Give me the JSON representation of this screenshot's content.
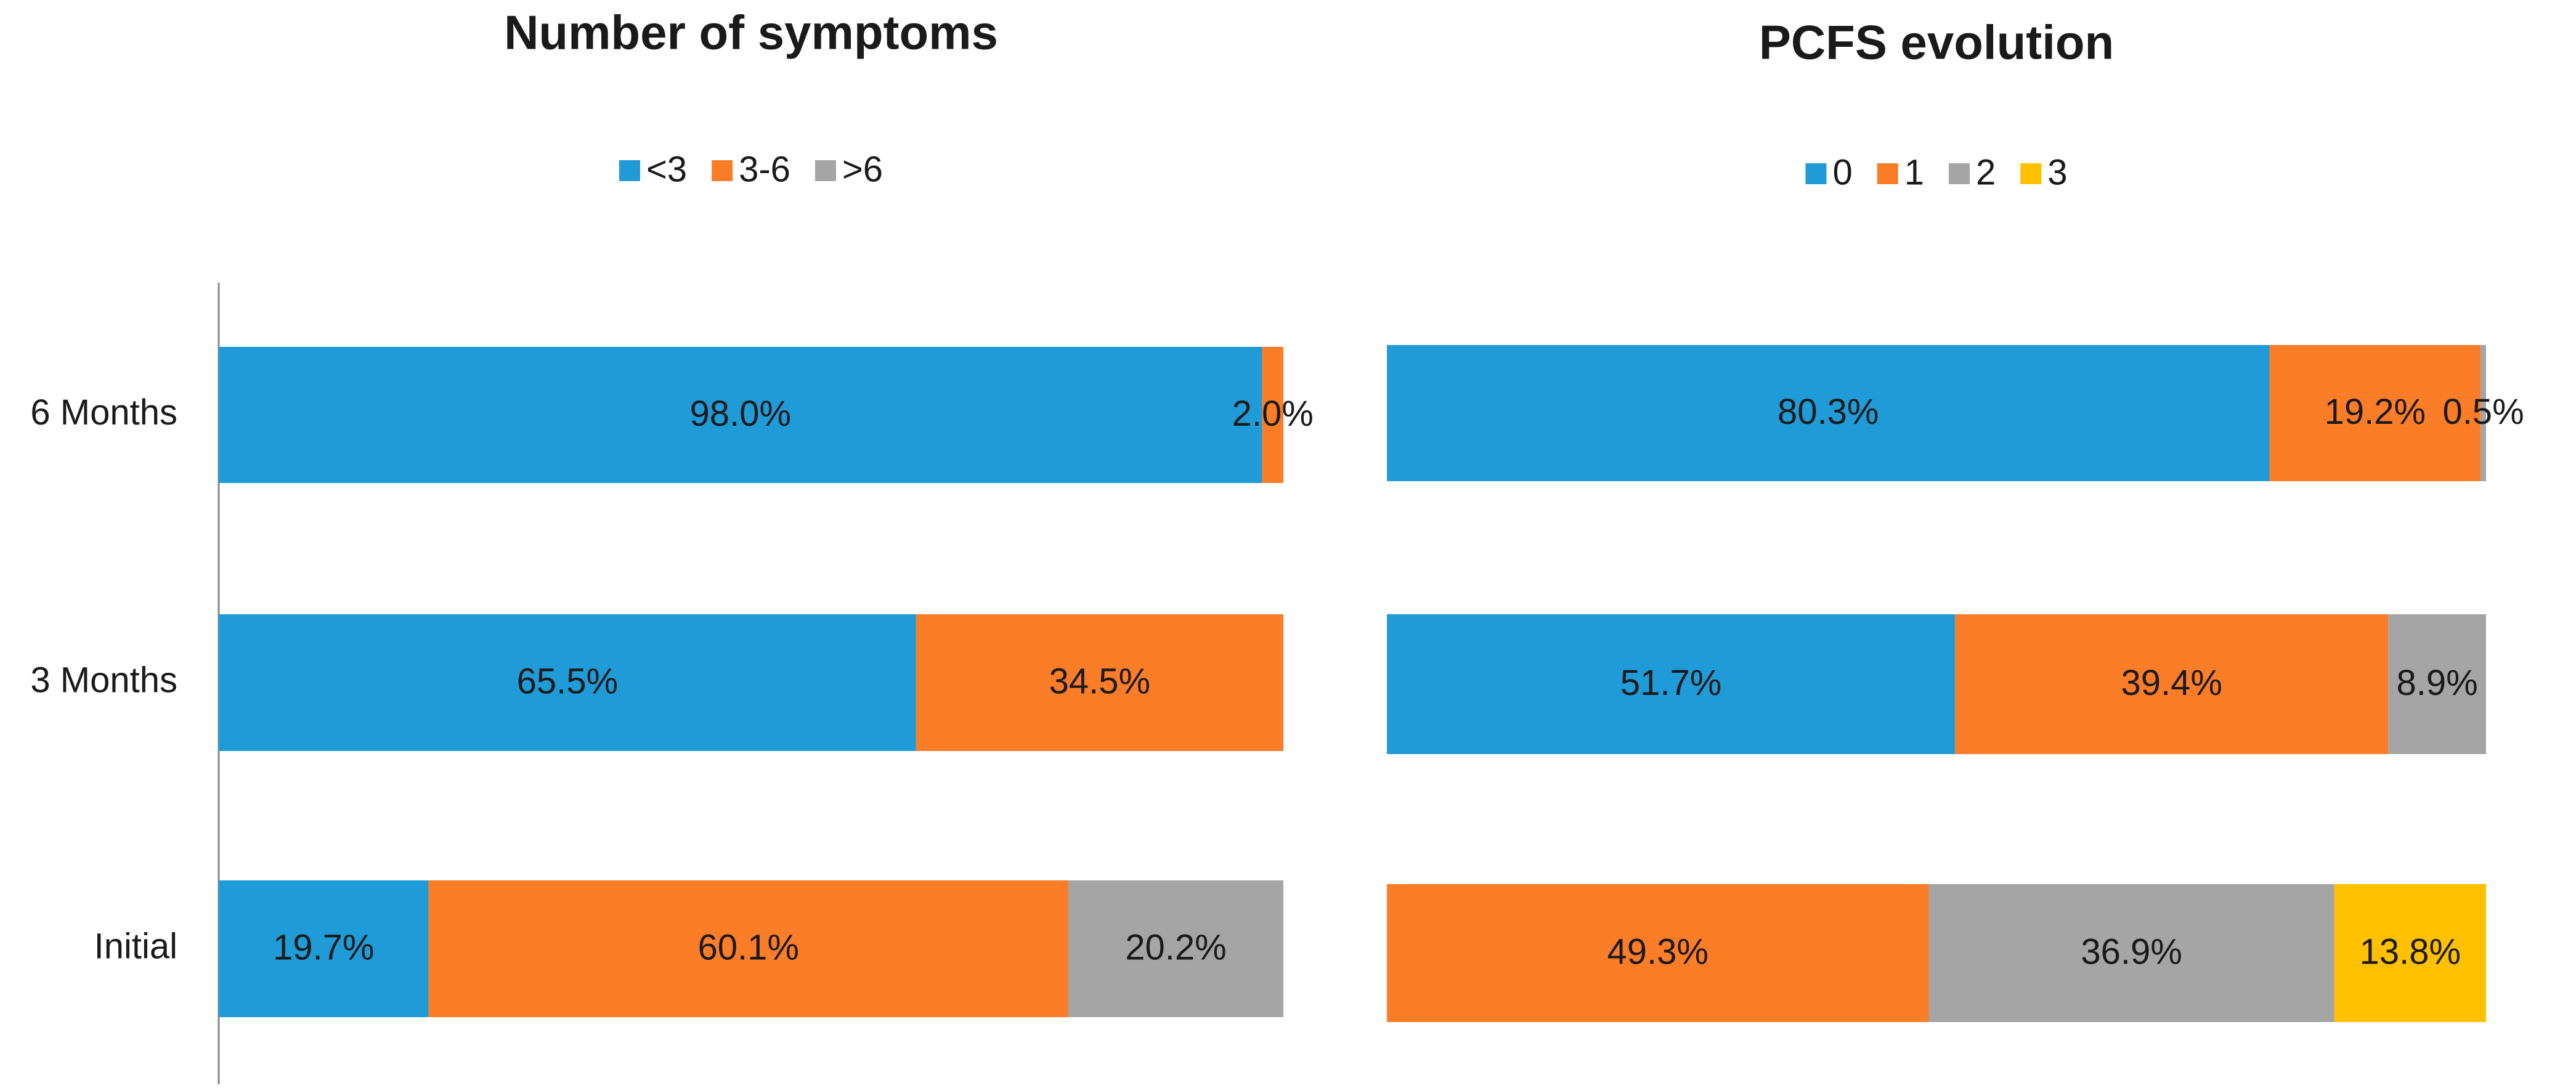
{
  "chart_data": [
    {
      "type": "stacked-bar-horizontal",
      "title": "Number of symptoms",
      "categories": [
        "6 Months",
        "3 Months",
        "Initial"
      ],
      "xlim": [
        0,
        100
      ],
      "series": [
        {
          "name": "<3",
          "color": "#1f9bd7",
          "values": [
            98.0,
            65.5,
            19.7
          ],
          "value_labels": [
            "98.0%",
            "65.5%",
            "19.7%"
          ]
        },
        {
          "name": "3-6",
          "color": "#fb7d28",
          "values": [
            2.0,
            34.5,
            60.1
          ],
          "value_labels": [
            "2.0%",
            "34.5%",
            "60.1%"
          ]
        },
        {
          "name": ">6",
          "color": "#a5a5a5",
          "values": [
            null,
            null,
            20.2
          ],
          "value_labels": [
            null,
            null,
            "20.2%"
          ]
        }
      ]
    },
    {
      "type": "stacked-bar-horizontal",
      "title": "PCFS evolution",
      "categories": [
        null,
        null,
        null
      ],
      "xlim": [
        0,
        100
      ],
      "series": [
        {
          "name": "0",
          "color": "#1f9bd7",
          "values": [
            80.3,
            51.7,
            null
          ],
          "value_labels": [
            "80.3%",
            "51.7%",
            null
          ]
        },
        {
          "name": "1",
          "color": "#fb7d28",
          "values": [
            19.2,
            39.4,
            49.3
          ],
          "value_labels": [
            "19.2%",
            "39.4%",
            "49.3%"
          ]
        },
        {
          "name": "2",
          "color": "#a5a5a5",
          "values": [
            0.5,
            8.9,
            36.9
          ],
          "value_labels": [
            "0.5%",
            "8.9%",
            "36.9%"
          ]
        },
        {
          "name": "3",
          "color": "#ffc000",
          "values": [
            null,
            null,
            13.8
          ],
          "value_labels": [
            null,
            null,
            "13.8%"
          ]
        }
      ]
    }
  ]
}
